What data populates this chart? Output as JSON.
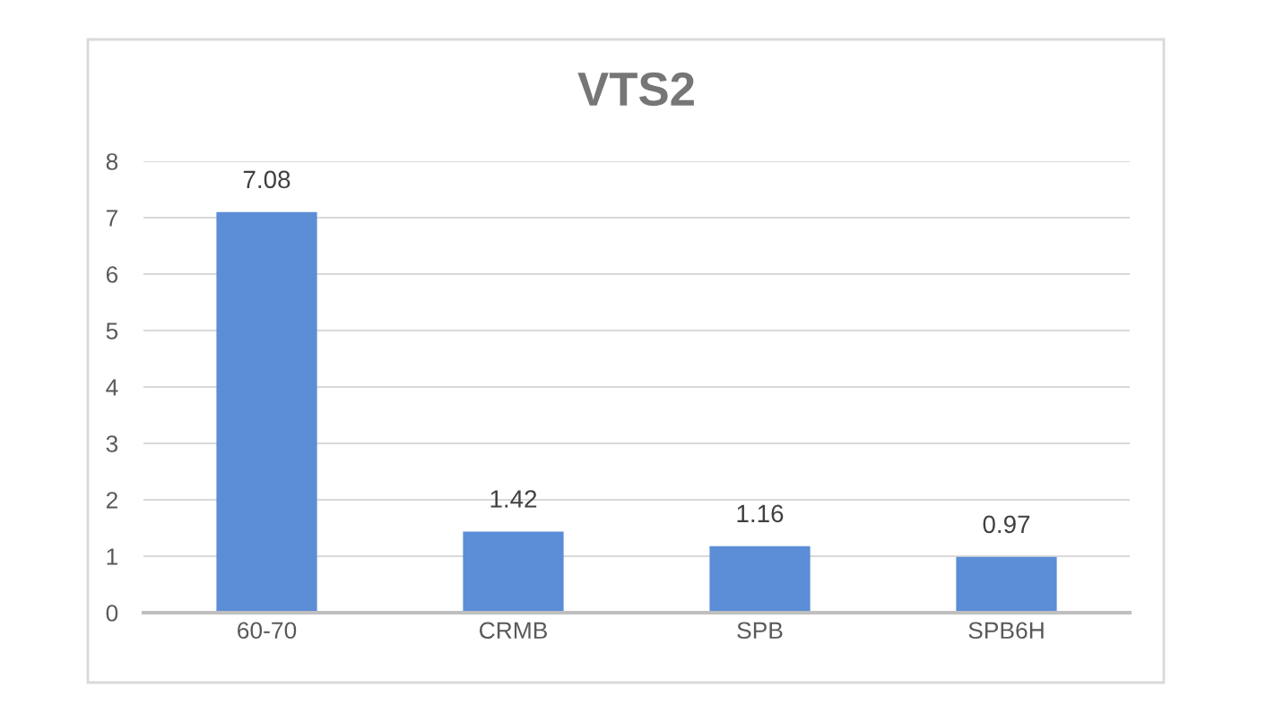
{
  "chart_data": {
    "type": "bar",
    "title": "VTS2",
    "categories": [
      "60-70",
      "CRMB",
      "SPB",
      "SPB6H"
    ],
    "values": [
      7.08,
      1.42,
      1.16,
      0.97
    ],
    "color": "#5b8ed6",
    "ylim": [
      0,
      8
    ],
    "yticks": [
      0,
      1,
      2,
      3,
      4,
      5,
      6,
      7,
      8
    ],
    "grid": "y",
    "data_labels": true,
    "legend": false
  }
}
